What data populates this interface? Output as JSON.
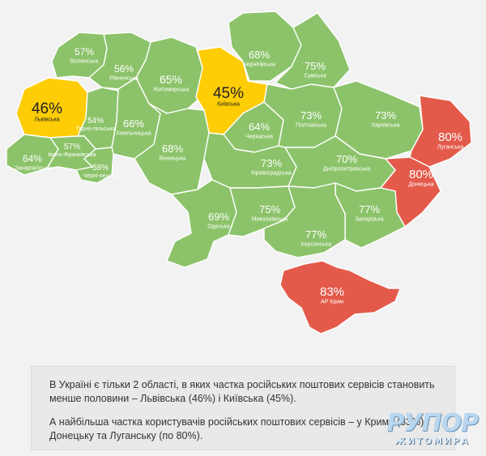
{
  "colors": {
    "green": "#8cc36a",
    "yellow": "#fecd06",
    "red": "#e45a4a"
  },
  "regions": [
    {
      "id": "volynska",
      "name": "Волинська",
      "value": "57%",
      "tier": "green"
    },
    {
      "id": "rivnenska",
      "name": "Рівненська",
      "value": "56%",
      "tier": "green"
    },
    {
      "id": "zhytomyrska",
      "name": "Житомирська",
      "value": "65%",
      "tier": "green"
    },
    {
      "id": "kyivska",
      "name": "Київська",
      "value": "45%",
      "tier": "yellow"
    },
    {
      "id": "chernihivska",
      "name": "Чернігівська",
      "value": "68%",
      "tier": "green"
    },
    {
      "id": "sumska",
      "name": "Сумська",
      "value": "75%",
      "tier": "green"
    },
    {
      "id": "lvivska",
      "name": "Львівська",
      "value": "46%",
      "tier": "yellow"
    },
    {
      "id": "ternopilska",
      "name": "Терно-пільська",
      "value": "54%",
      "tier": "green"
    },
    {
      "id": "khmelnytska",
      "name": "Хмельницька",
      "value": "66%",
      "tier": "green"
    },
    {
      "id": "cherkaska",
      "name": "Черкаська",
      "value": "64%",
      "tier": "green"
    },
    {
      "id": "poltavska",
      "name": "Полтавська",
      "value": "73%",
      "tier": "green"
    },
    {
      "id": "kharkivska",
      "name": "Харківська",
      "value": "73%",
      "tier": "green"
    },
    {
      "id": "luhanska",
      "name": "Луганська",
      "value": "80%",
      "tier": "red"
    },
    {
      "id": "zakarpatska",
      "name": "Закарпатська",
      "value": "64%",
      "tier": "green"
    },
    {
      "id": "ivanofrankivska",
      "name": "Івано-Франківська",
      "value": "57%",
      "tier": "green"
    },
    {
      "id": "chernivetska",
      "name": "Черні-вецька",
      "value": "58%",
      "tier": "green"
    },
    {
      "id": "vinnytska",
      "name": "Вінницька",
      "value": "68%",
      "tier": "green"
    },
    {
      "id": "kirovohradska",
      "name": "Кіровоградська",
      "value": "73%",
      "tier": "green"
    },
    {
      "id": "dnipropetrovska",
      "name": "Дніпропетровська",
      "value": "70%",
      "tier": "green"
    },
    {
      "id": "donetska",
      "name": "Донецька",
      "value": "80%",
      "tier": "red"
    },
    {
      "id": "odeska",
      "name": "Одеська",
      "value": "69%",
      "tier": "green"
    },
    {
      "id": "mykolaivska",
      "name": "Миколаївська",
      "value": "75%",
      "tier": "green"
    },
    {
      "id": "zaporizka",
      "name": "Запорізька",
      "value": "77%",
      "tier": "green"
    },
    {
      "id": "khersonska",
      "name": "Херсонська",
      "value": "77%",
      "tier": "green"
    },
    {
      "id": "crimea",
      "name": "АР Крим",
      "value": "83%",
      "tier": "red"
    }
  ],
  "info": {
    "p1": "В Україні є тільки 2 області, в яких частка російських поштових сервісів становить менше половини – Львівська (46%) і Київська (45%).",
    "p2": "А найбільша частка користувачів російських поштових сервісів – у Криму (83%), Донецьку та Луганську (по 80%)."
  },
  "logo": {
    "line1": "РУПОР",
    "line2": "ЖИТОМИРА"
  }
}
